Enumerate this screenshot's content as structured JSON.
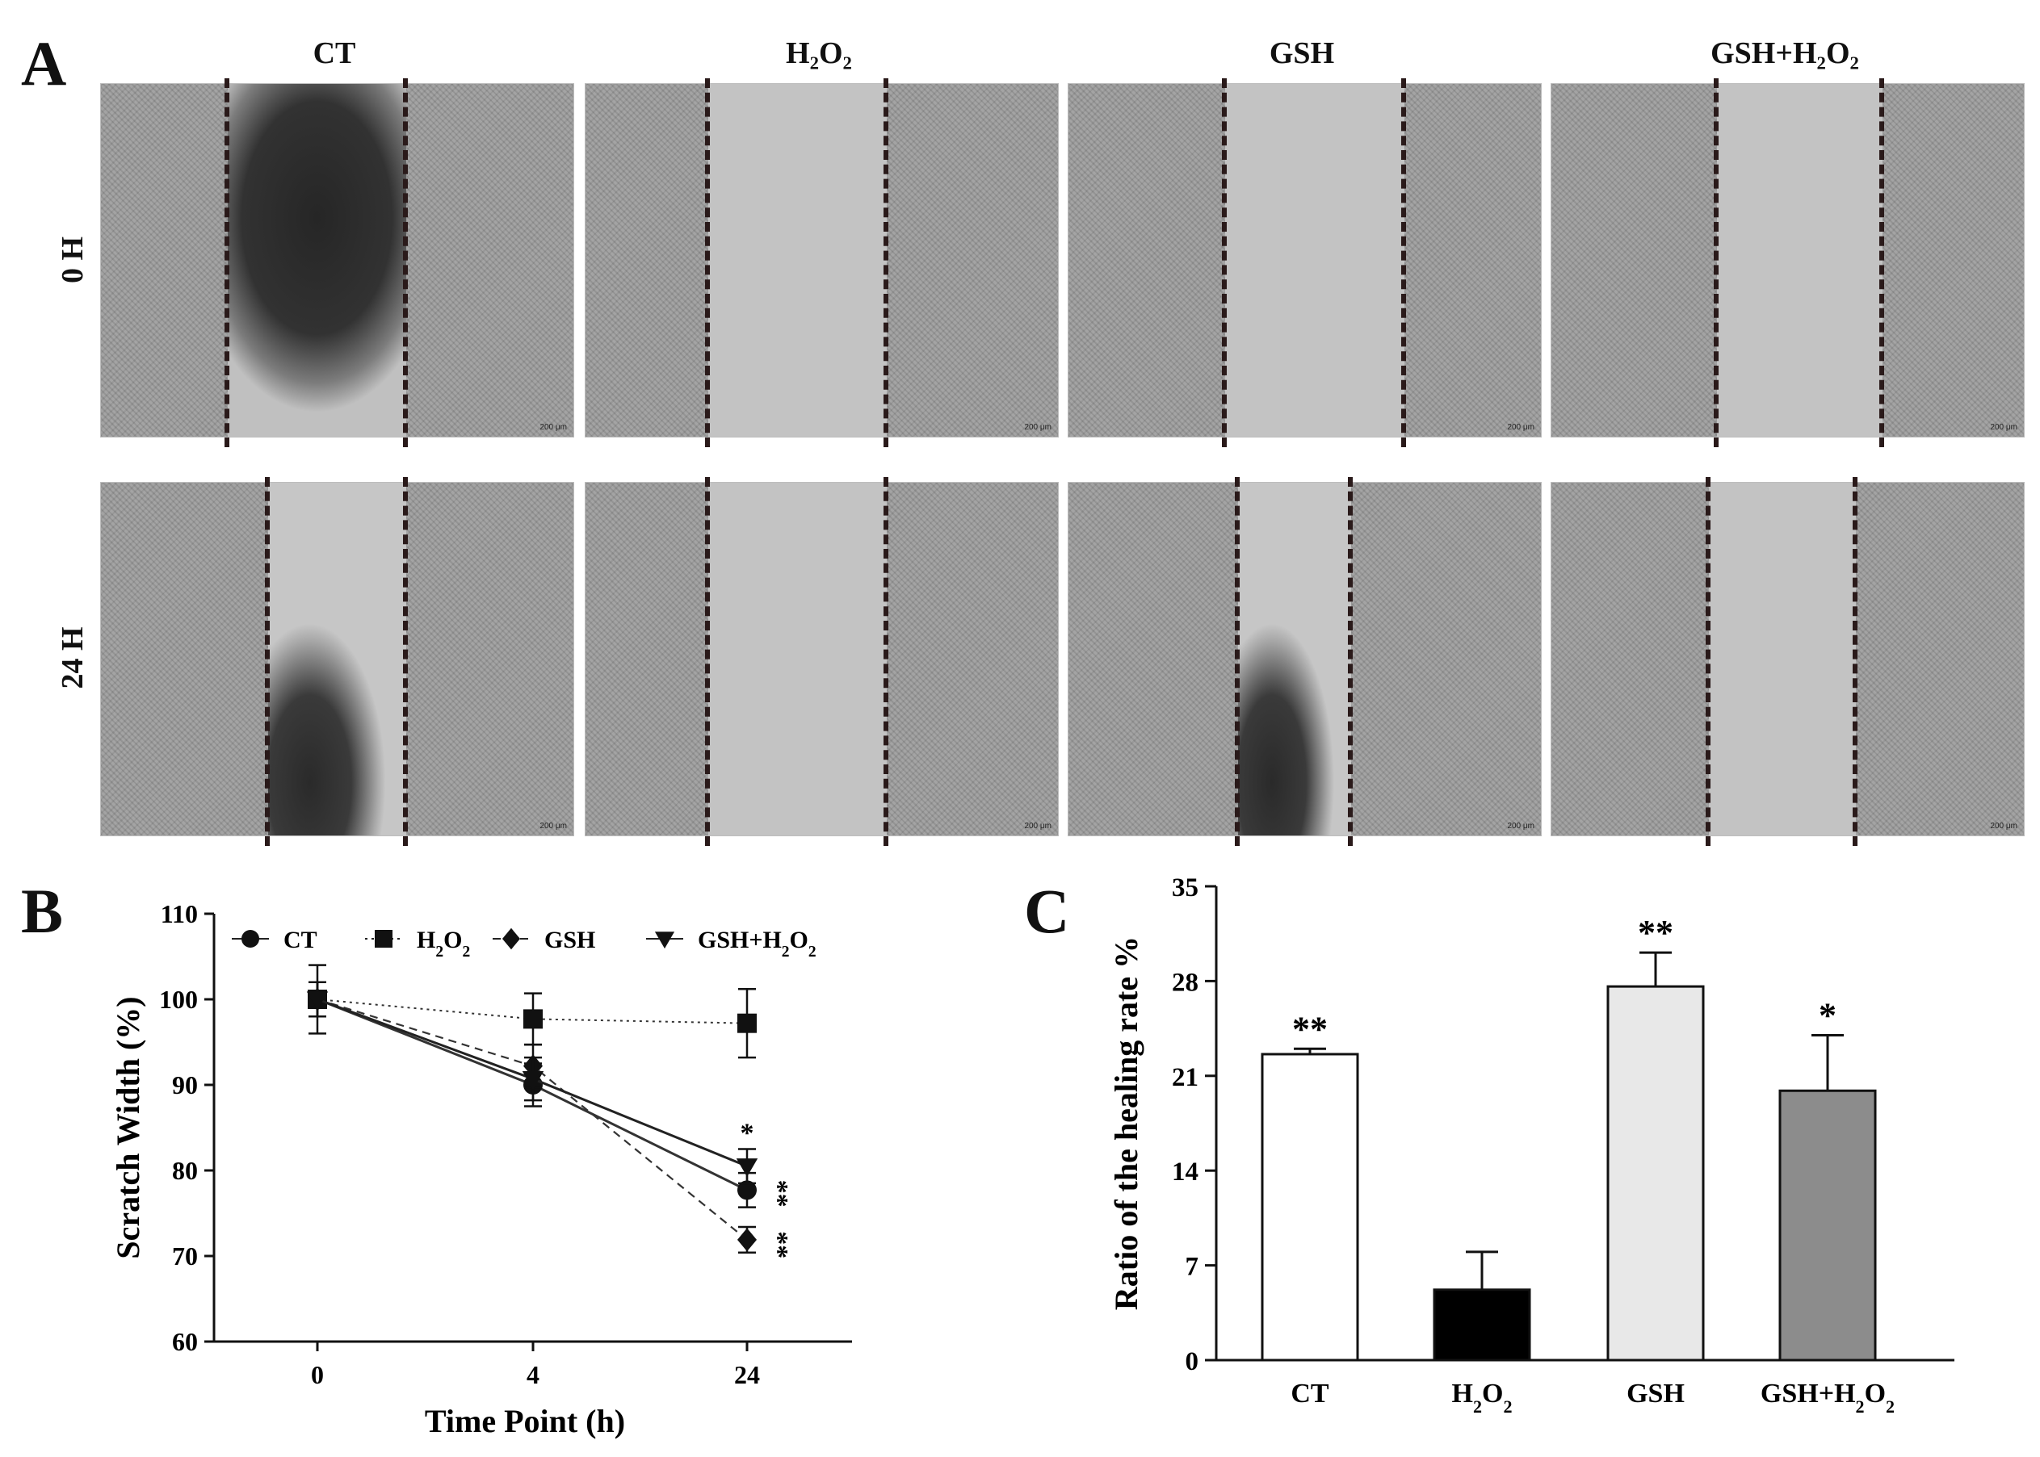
{
  "panel_a": {
    "letter": "A",
    "columns": [
      "CT",
      "H₂O₂",
      "GSH",
      "GSH+H₂O₂"
    ],
    "rows": [
      "0 H",
      "24 H"
    ],
    "scale_label": "200 μm"
  },
  "panel_b": {
    "letter": "B"
  },
  "panel_c": {
    "letter": "C"
  },
  "colors": {
    "dash": "#2a1a1a",
    "bar_ct": "#ffffff",
    "bar_h2o2": "#000000",
    "bar_gsh": "#e8e8e8",
    "bar_gsh_h2o2": "#8c8c8c"
  },
  "chart_data": [
    {
      "type": "line",
      "xlabel": "Time Point (h)",
      "ylabel": "Scratch Width (%)",
      "categories": [
        "0",
        "4",
        "24"
      ],
      "ylim": [
        60,
        110
      ],
      "yticks": [
        60,
        70,
        80,
        90,
        100,
        110
      ],
      "legend_position": "top",
      "series": [
        {
          "name": "CT",
          "values": [
            100,
            90,
            77.7
          ],
          "errors": [
            4,
            2.5,
            2
          ],
          "marker": "circle",
          "line": "solid"
        },
        {
          "name": "H2O2",
          "values": [
            100,
            97.7,
            97.2
          ],
          "errors": [
            2,
            3,
            4
          ],
          "marker": "square",
          "line": "dotted"
        },
        {
          "name": "GSH",
          "values": [
            100,
            92.2,
            71.9
          ],
          "errors": [
            2,
            2.5,
            1.5
          ],
          "marker": "diamond",
          "line": "dashed"
        },
        {
          "name": "GSH+H2O2",
          "values": [
            100,
            90.7,
            80.5
          ],
          "errors": [
            2,
            2.5,
            2
          ],
          "marker": "triangle-down",
          "line": "solid"
        }
      ],
      "annotations": [
        {
          "text": "*",
          "x": "24",
          "y": 84.5
        },
        {
          "text": "**",
          "x": "24",
          "y": 77.3
        },
        {
          "text": "**",
          "x": "24",
          "y": 71.3
        }
      ]
    },
    {
      "type": "bar",
      "ylabel": "Ratio of the healing rate %",
      "categories": [
        "CT",
        "H2O2",
        "GSH",
        "GSH+H2O2"
      ],
      "values": [
        22.6,
        5.2,
        27.6,
        19.9
      ],
      "errors": [
        0.4,
        2.8,
        2.5,
        4.1
      ],
      "significance": [
        "**",
        "",
        "**",
        "*"
      ],
      "ylim": [
        0,
        35
      ],
      "yticks": [
        0,
        7,
        14,
        21,
        28,
        35
      ]
    }
  ]
}
